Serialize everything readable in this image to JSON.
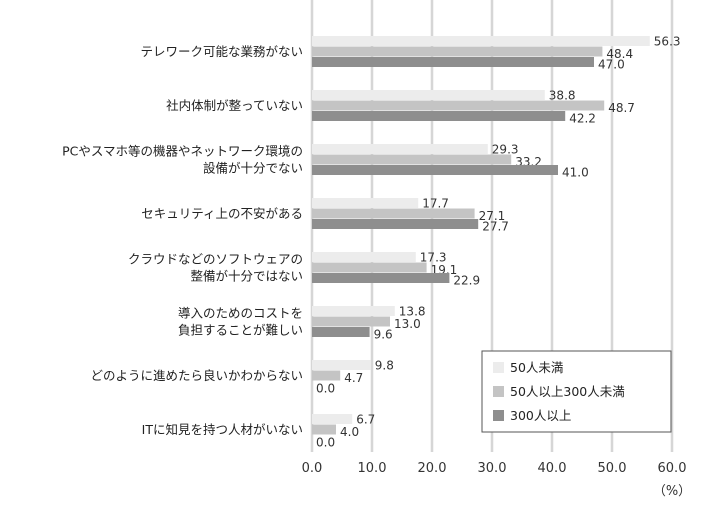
{
  "chart_data": {
    "type": "bar",
    "orientation": "horizontal",
    "categories": [
      [
        "テレワーク可能な業務がない"
      ],
      [
        "社内体制が整っていない"
      ],
      [
        "PCやスマホ等の機器やネットワーク環境の",
        "設備が十分でない"
      ],
      [
        "セキュリティ上の不安がある"
      ],
      [
        "クラウドなどのソフトウェアの",
        "整備が十分ではない"
      ],
      [
        "導入のためのコストを",
        "負担することが難しい"
      ],
      [
        "どのように進めたら良いかわからない"
      ],
      [
        "ITに知見を持つ人材がいない"
      ]
    ],
    "series": [
      {
        "name": "50人未満",
        "color": "#ececec",
        "values": [
          56.3,
          38.8,
          29.3,
          17.7,
          17.3,
          13.8,
          9.8,
          6.7
        ],
        "labels": [
          "56.3",
          "38.8",
          "29.3",
          "17.7",
          "17.3",
          "13.8",
          "9.8",
          "6.7"
        ]
      },
      {
        "name": "50人以上300人未満",
        "color": "#c4c4c4",
        "values": [
          48.4,
          48.7,
          33.2,
          27.1,
          19.1,
          13.0,
          4.7,
          4.0
        ],
        "labels": [
          "48.4",
          "48.7",
          "33.2",
          "27.1",
          "19.1",
          "13.0",
          "4.7",
          "4.0"
        ]
      },
      {
        "name": "300人以上",
        "color": "#8e8e8e",
        "values": [
          47.0,
          42.2,
          41.0,
          27.7,
          22.9,
          9.6,
          0.0,
          0.0
        ],
        "labels": [
          "47.0",
          "42.2",
          "41.0",
          "27.7",
          "22.9",
          "9.6",
          "0.0",
          "0.0"
        ]
      }
    ],
    "xlim": [
      0,
      60
    ],
    "xticks": [
      "0.0",
      "10.0",
      "20.0",
      "30.0",
      "40.0",
      "50.0",
      "60.0"
    ],
    "xlabel": "（%）",
    "grid": true,
    "legend_position": "bottom-right"
  }
}
